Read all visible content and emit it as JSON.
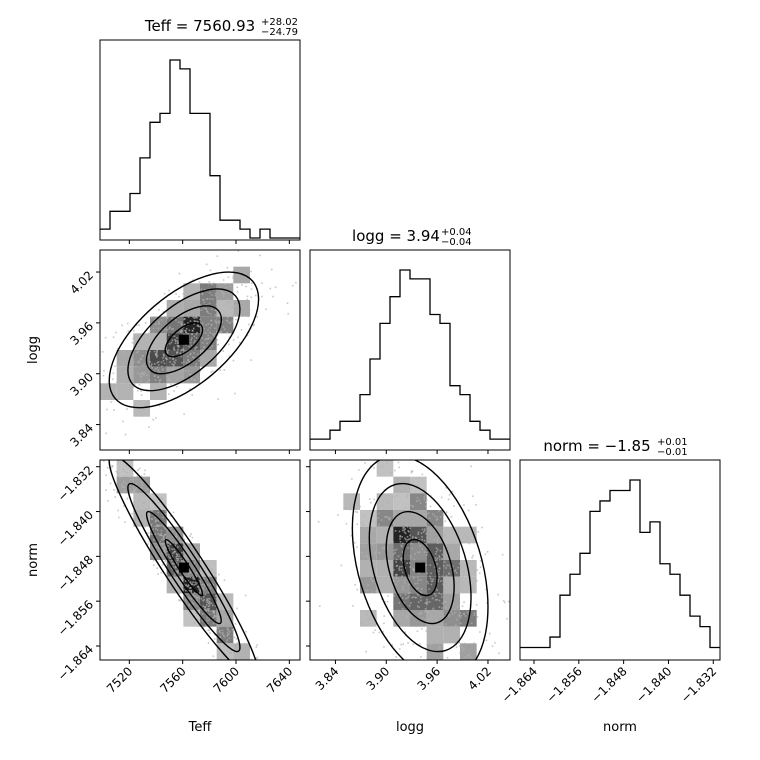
{
  "chart_data": {
    "type": "corner",
    "parameters": [
      "Teff",
      "logg",
      "norm"
    ],
    "axis_labels": {
      "Teff": "Teff",
      "logg": "logg",
      "norm": "norm"
    },
    "titles": [
      {
        "param": "Teff",
        "prefix": "Teff = 7560.93",
        "upper": "+28.02",
        "lower": "−24.79"
      },
      {
        "param": "logg",
        "prefix": "logg = 3.94",
        "upper": "+0.04",
        "lower": "−0.04"
      },
      {
        "param": "norm",
        "prefix": "norm = −1.85",
        "upper": "+0.01",
        "lower": "−0.01"
      }
    ],
    "ranges": {
      "Teff": [
        7498,
        7648
      ],
      "logg": [
        3.81,
        4.046
      ],
      "norm": [
        -1.8665,
        -1.8308
      ]
    },
    "ticks": {
      "Teff": {
        "values": [
          7520,
          7560,
          7600,
          7640
        ],
        "labels": [
          "7520",
          "7560",
          "7600",
          "7640"
        ]
      },
      "logg": {
        "values": [
          3.84,
          3.9,
          3.96,
          4.02
        ],
        "labels": [
          "3.84",
          "3.90",
          "3.96",
          "4.02"
        ]
      },
      "norm": {
        "values": [
          -1.864,
          -1.856,
          -1.848,
          -1.84,
          -1.832
        ],
        "labels": [
          "−1.864",
          "−1.856",
          "−1.848",
          "−1.840",
          "−1.832"
        ]
      }
    },
    "histograms": {
      "Teff": {
        "range": [
          7498,
          7648
        ],
        "counts": [
          1,
          3,
          3,
          5,
          9,
          13,
          14,
          20,
          19,
          14,
          14,
          7,
          2,
          2,
          1,
          0,
          1,
          0,
          0,
          0
        ]
      },
      "logg": {
        "range": [
          3.81,
          4.046
        ],
        "counts": [
          1,
          1,
          2,
          3,
          3,
          6,
          10,
          14,
          17,
          20,
          19,
          19,
          15,
          14,
          7,
          6,
          3,
          2,
          1,
          1
        ]
      },
      "norm": {
        "range": [
          -1.8665,
          -1.8308
        ],
        "counts": [
          1,
          1,
          1,
          2,
          6,
          8,
          10,
          14,
          15,
          16,
          16,
          17,
          12,
          13,
          9,
          8,
          6,
          4,
          3,
          1
        ]
      }
    },
    "joint": {
      "logg_vs_Teff": {
        "x": "Teff",
        "y": "logg",
        "mean": [
          7560.93,
          3.94
        ],
        "sd": [
          28,
          0.04
        ],
        "corr": 0.6
      },
      "norm_vs_Teff": {
        "x": "Teff",
        "y": "norm",
        "mean": [
          7560.93,
          -1.85
        ],
        "sd": [
          28,
          0.01
        ],
        "corr": -0.95
      },
      "norm_vs_logg": {
        "x": "logg",
        "y": "norm",
        "mean": [
          3.94,
          -1.85
        ],
        "sd": [
          0.04,
          0.01
        ],
        "corr": -0.35
      }
    },
    "grid": false,
    "legend": "none"
  }
}
